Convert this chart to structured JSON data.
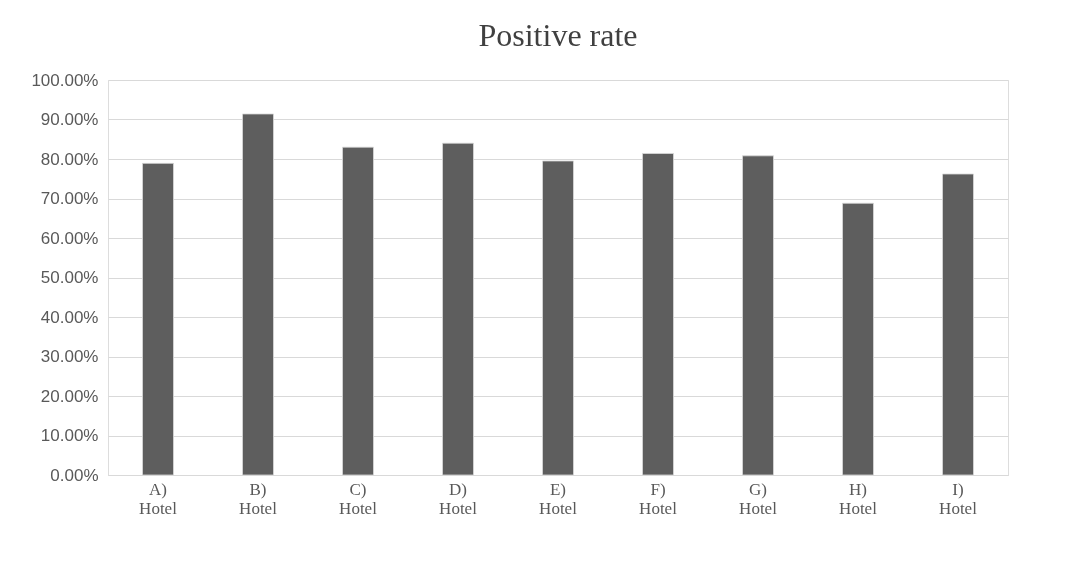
{
  "chart_data": {
    "type": "bar",
    "title": "Positive rate",
    "categories": [
      "A)\nHotel",
      "B)\nHotel",
      "C)\nHotel",
      "D)\nHotel",
      "E)\nHotel",
      "F)\nHotel",
      "G)\nHotel",
      "H)\nHotel",
      "I)\nHotel"
    ],
    "values": [
      78.9,
      91.4,
      83.0,
      84.0,
      79.5,
      81.4,
      80.8,
      68.8,
      76.2
    ],
    "color": "#5e5e5e",
    "ylim": [
      0,
      100
    ],
    "yticks": [
      {
        "value": 0,
        "label": "0.00%"
      },
      {
        "value": 10,
        "label": "10.00%"
      },
      {
        "value": 20,
        "label": "20.00%"
      },
      {
        "value": 30,
        "label": "30.00%"
      },
      {
        "value": 40,
        "label": "40.00%"
      },
      {
        "value": 50,
        "label": "50.00%"
      },
      {
        "value": 60,
        "label": "60.00%"
      },
      {
        "value": 70,
        "label": "70.00%"
      },
      {
        "value": 80,
        "label": "80.00%"
      },
      {
        "value": 90,
        "label": "90.00%"
      },
      {
        "value": 100,
        "label": "100.00%"
      }
    ],
    "grid": "y"
  }
}
